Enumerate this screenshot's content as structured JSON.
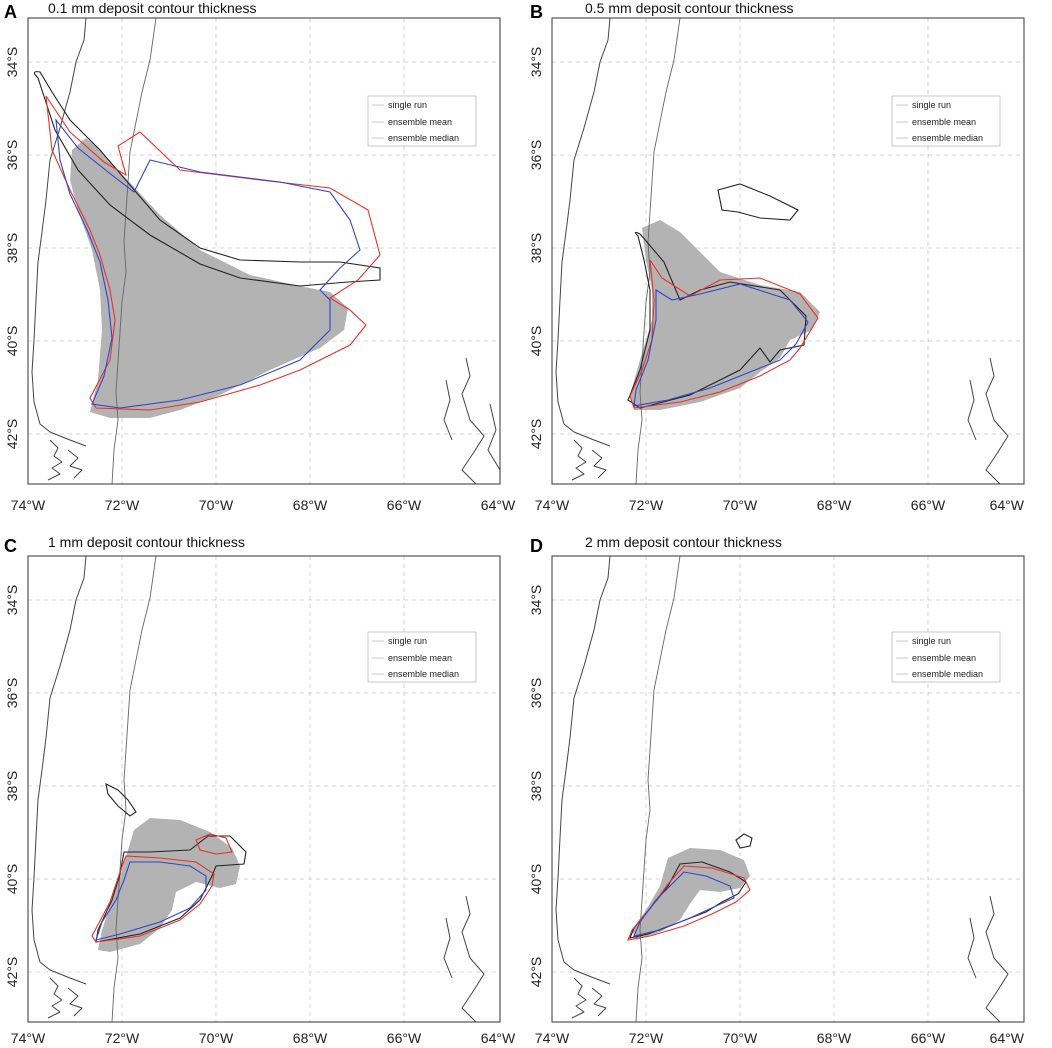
{
  "figure": {
    "panels": [
      {
        "letter": "A",
        "title": "0.1 mm deposit contour thickness",
        "x_ticks": [
          "74°W",
          "72°W",
          "70°W",
          "68°W",
          "66°W",
          "64°W"
        ],
        "y_ticks": [
          "34°S",
          "36°S",
          "38°S",
          "40°S",
          "42°S"
        ],
        "legend": [
          "single run",
          "ensemble mean",
          "ensemble median"
        ]
      },
      {
        "letter": "B",
        "title": "0.5 mm deposit contour thickness",
        "x_ticks": [
          "74°W",
          "72°W",
          "70°W",
          "68°W",
          "66°W",
          "64°W"
        ],
        "y_ticks": [
          "34°S",
          "36°S",
          "38°S",
          "40°S",
          "42°S"
        ],
        "legend": [
          "single run",
          "ensemble mean",
          "ensemble median"
        ]
      },
      {
        "letter": "C",
        "title": "1 mm deposit contour thickness",
        "x_ticks": [
          "74°W",
          "72°W",
          "70°W",
          "68°W",
          "66°W",
          "64°W"
        ],
        "y_ticks": [
          "34°S",
          "36°S",
          "38°S",
          "40°S",
          "42°S"
        ],
        "legend": [
          "single run",
          "ensemble mean",
          "ensemble median"
        ]
      },
      {
        "letter": "D",
        "title": "2 mm deposit contour thickness",
        "x_ticks": [
          "74°W",
          "72°W",
          "70°W",
          "68°W",
          "66°W",
          "64°W"
        ],
        "y_ticks": [
          "34°S",
          "36°S",
          "38°S",
          "40°S",
          "42°S"
        ],
        "legend": [
          "single run",
          "ensemble mean",
          "ensemble median"
        ]
      }
    ],
    "colors": {
      "observed_deposit_fill": "#b3b3b3",
      "single_run": "#222222",
      "ensemble_mean": "#e8332a",
      "ensemble_median": "#3344cc"
    }
  }
}
